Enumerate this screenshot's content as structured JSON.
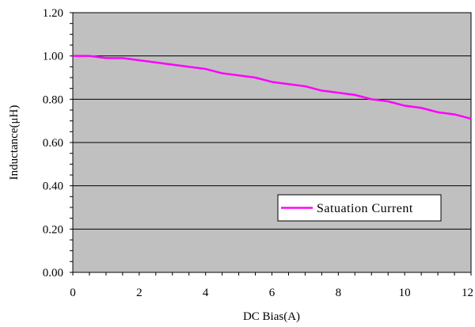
{
  "chart_data": {
    "type": "line",
    "title": "",
    "xlabel": "DC Bias(A)",
    "ylabel": "Inductance(μH)",
    "xlim": [
      0,
      12
    ],
    "ylim": [
      0,
      1.2
    ],
    "x_ticks": [
      "0",
      "2",
      "4",
      "6",
      "8",
      "10",
      "12"
    ],
    "y_ticks": [
      "0.00",
      "0.20",
      "0.40",
      "0.60",
      "0.80",
      "1.00",
      "1.20"
    ],
    "grid": "horizontal",
    "legend_position": "bottom-right",
    "series": [
      {
        "name": "Satuation Current",
        "color": "#ff00ff",
        "x": [
          0,
          0.5,
          1,
          1.5,
          2,
          2.5,
          3,
          3.5,
          4,
          4.5,
          5,
          5.5,
          6,
          6.5,
          7,
          7.5,
          8,
          8.5,
          9,
          9.5,
          10,
          10.5,
          11,
          11.5,
          12
        ],
        "values": [
          1.0,
          1.0,
          0.99,
          0.99,
          0.98,
          0.97,
          0.96,
          0.95,
          0.94,
          0.92,
          0.91,
          0.9,
          0.88,
          0.87,
          0.86,
          0.84,
          0.83,
          0.82,
          0.8,
          0.79,
          0.77,
          0.76,
          0.74,
          0.73,
          0.71
        ]
      }
    ]
  },
  "colors": {
    "plot_background": "#c0c0c0",
    "gridline": "#000000",
    "line": "#ff00ff"
  }
}
